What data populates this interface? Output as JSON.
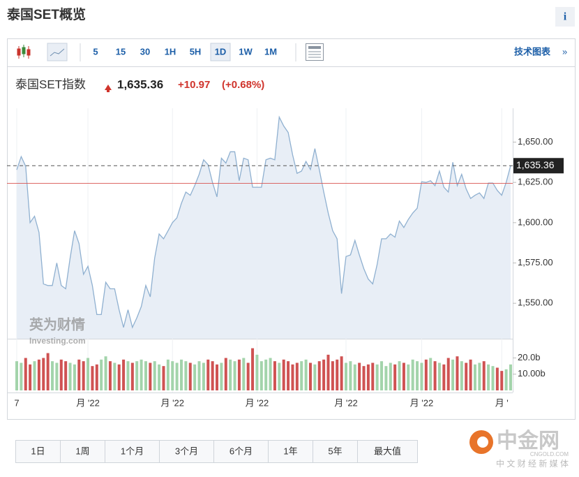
{
  "header": {
    "title": "泰国SET概览",
    "info": "i"
  },
  "toolbar": {
    "intervals": [
      "5",
      "15",
      "30",
      "1H",
      "5H",
      "1D",
      "1W",
      "1M"
    ],
    "selected": "1D",
    "technical": "技术图表",
    "more": "»"
  },
  "quote": {
    "name": "泰国SET指数",
    "price": "1,635.36",
    "change": "+10.97",
    "change_pct": "(+0.68%)"
  },
  "watermark": {
    "cn": "英为财情",
    "en": "Investing.com"
  },
  "ranges": [
    "1日",
    "1周",
    "1个月",
    "3个月",
    "6个月",
    "1年",
    "5年",
    "最大值"
  ],
  "logo": {
    "name": "中金网",
    "domain": "CNGOLD.COM",
    "tagline": "中 文 财 经 新 媒 体"
  },
  "chart_data": {
    "type": "line",
    "line_color": "#8fb0d0",
    "area_color": "#e8eef6",
    "ylim": [
      1528,
      1671
    ],
    "yticks": [
      {
        "value": 1550,
        "label": "1,550.00"
      },
      {
        "value": 1575,
        "label": "1,575.00"
      },
      {
        "value": 1600,
        "label": "1,600.00"
      },
      {
        "value": 1625,
        "label": "1,625.00"
      },
      {
        "value": 1650,
        "label": "1,650.00"
      }
    ],
    "last_value": 1635.36,
    "last_label": "1,635.36",
    "reference_line": 1624.39,
    "categories": [
      "7",
      null,
      null,
      null,
      null,
      null,
      null,
      null,
      null,
      null,
      null,
      null,
      null,
      null,
      null,
      null,
      "月 '22",
      null,
      null,
      null,
      null,
      null,
      null,
      null,
      null,
      null,
      null,
      null,
      null,
      null,
      null,
      null,
      null,
      null,
      null,
      "月 '22",
      null,
      null,
      null,
      null,
      null,
      null,
      null,
      null,
      null,
      null,
      null,
      null,
      null,
      null,
      null,
      null,
      null,
      null,
      "月 '22",
      null,
      null,
      null,
      null,
      null,
      null,
      null,
      null,
      null,
      null,
      null,
      null,
      null,
      null,
      null,
      null,
      null,
      null,
      null,
      "月 '22",
      null,
      null,
      null,
      null,
      null,
      null,
      null,
      null,
      null,
      null,
      null,
      null,
      null,
      null,
      null,
      null,
      "月 '22",
      null,
      null,
      null,
      null,
      null,
      null,
      null,
      null,
      null,
      null,
      null,
      null,
      null,
      null,
      null,
      null,
      null,
      "月 '",
      null,
      null
    ],
    "values": [
      1632.8,
      1641,
      1635,
      1600,
      1604,
      1594,
      1562,
      1561,
      1561,
      1575,
      1561,
      1559,
      1578,
      1595,
      1587,
      1568,
      1573,
      1561,
      1543,
      1543,
      1563,
      1559,
      1559,
      1546,
      1535,
      1546,
      1535,
      1541,
      1548,
      1561,
      1554,
      1578,
      1593,
      1590,
      1595,
      1600,
      1603,
      1612,
      1619,
      1617,
      1623,
      1630,
      1639,
      1636,
      1625,
      1616,
      1640,
      1637,
      1644,
      1644,
      1626,
      1640,
      1639,
      1622,
      1622,
      1622,
      1639,
      1640,
      1639,
      1665.5,
      1660,
      1656,
      1642,
      1630.6,
      1632,
      1638,
      1633,
      1646,
      1633,
      1619,
      1606,
      1595,
      1590,
      1556,
      1579,
      1580,
      1589,
      1580,
      1571.5,
      1565,
      1562,
      1574,
      1590,
      1590,
      1593,
      1591,
      1601,
      1597,
      1602,
      1606,
      1609,
      1625.4,
      1625,
      1626,
      1623,
      1632,
      1622,
      1619,
      1637.5,
      1623,
      1630,
      1621,
      1615,
      1617,
      1618.5,
      1615,
      1624.6,
      1624.6,
      1620,
      1617,
      1625,
      1635.36
    ],
    "volume": {
      "up_color": "#a3d4ab",
      "down_color": "#cf5252",
      "vlim": [
        0,
        31
      ],
      "yticks": [
        {
          "value": 20,
          "label": "20.0b"
        },
        {
          "value": 10,
          "label": "10.00b"
        }
      ],
      "values": [
        18,
        17,
        20,
        16,
        18,
        19,
        20,
        23,
        18,
        17,
        19,
        18,
        17,
        16,
        19,
        18,
        20,
        15,
        16,
        19,
        21,
        18,
        17,
        16,
        19,
        18,
        17,
        18,
        19,
        18,
        17,
        18,
        16,
        15,
        19,
        18,
        17,
        19,
        18,
        17,
        16,
        18,
        17,
        19,
        18,
        16,
        17,
        20,
        19,
        18,
        19,
        20,
        17,
        26,
        22,
        18,
        19,
        20,
        18,
        17,
        19,
        18,
        16,
        17,
        18,
        19,
        17,
        16,
        18,
        19,
        22,
        18,
        19,
        21,
        17,
        18,
        16,
        17,
        15,
        16,
        17,
        16,
        18,
        15,
        17,
        16,
        18,
        17,
        16,
        19,
        18,
        17,
        19,
        20,
        18,
        17,
        16,
        20,
        19,
        21,
        18,
        17,
        19,
        16,
        17,
        18,
        16,
        15,
        14,
        12,
        13,
        16
      ]
    }
  }
}
